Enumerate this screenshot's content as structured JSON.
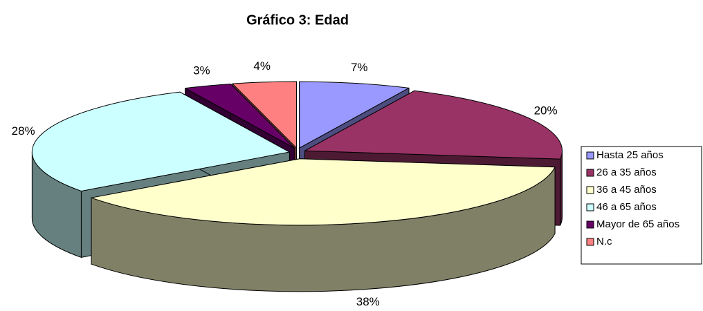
{
  "chart_data": {
    "type": "pie",
    "title": "Gráfico 3: Edad",
    "categories": [
      "Hasta 25 años",
      "26 a 35 años",
      "36 a 45 años",
      "46 a 65 años",
      "Mayor de 65 años",
      "N.c"
    ],
    "values": [
      7,
      20,
      38,
      28,
      3,
      4
    ],
    "value_labels": [
      "7%",
      "20%",
      "38%",
      "28%",
      "3%",
      "4%"
    ],
    "colors": [
      "#9999ff",
      "#993366",
      "#ffffcc",
      "#ccffff",
      "#660066",
      "#ff8080"
    ],
    "legend": "right"
  }
}
